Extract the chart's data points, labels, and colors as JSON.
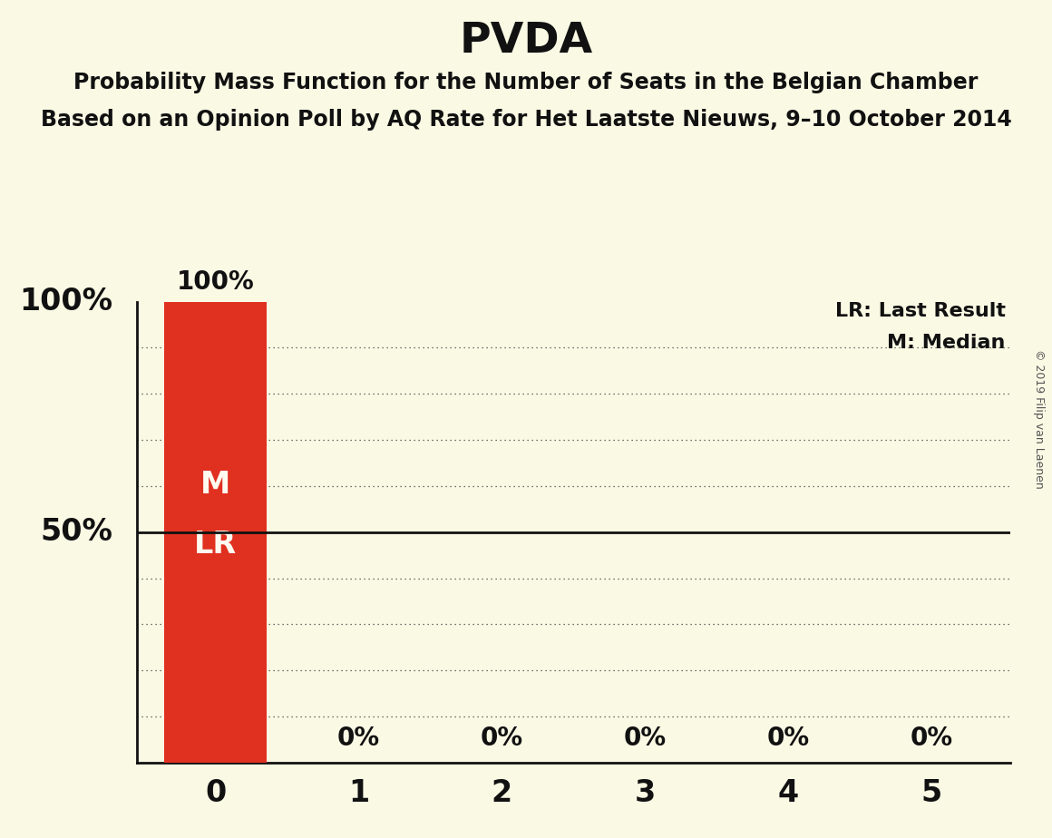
{
  "title": "PVDA",
  "subtitle1": "Probability Mass Function for the Number of Seats in the Belgian Chamber",
  "subtitle2": "Based on an Opinion Poll by AQ Rate for Het Laatste Nieuws, 9–10 October 2014",
  "copyright": "© 2019 Filip van Laenen",
  "bar_values": [
    100,
    0,
    0,
    0,
    0,
    0
  ],
  "bar_labels": [
    "100%",
    "0%",
    "0%",
    "0%",
    "0%",
    "0%"
  ],
  "x_labels": [
    "0",
    "1",
    "2",
    "3",
    "4",
    "5"
  ],
  "bar_color": "#e03020",
  "bar_text_color": "#fffaf0",
  "background_color": "#faf9e4",
  "text_color": "#111111",
  "ylim": [
    0,
    100
  ],
  "ylabel_left_values": [
    50,
    100
  ],
  "ylabel_left_labels": [
    "50%",
    "100%"
  ],
  "legend_lr": "LR: Last Result",
  "legend_m": "M: Median",
  "dotted_line_positions": [
    10,
    20,
    30,
    40,
    60,
    70,
    80,
    90
  ],
  "solid_line_positions": [
    50
  ],
  "bar_width": 0.72,
  "title_fontsize": 34,
  "subtitle_fontsize": 17,
  "axis_label_fontsize": 24,
  "bar_label_fontsize": 20,
  "legend_fontsize": 16,
  "copyright_fontsize": 9,
  "inner_label_fontsize": 24
}
